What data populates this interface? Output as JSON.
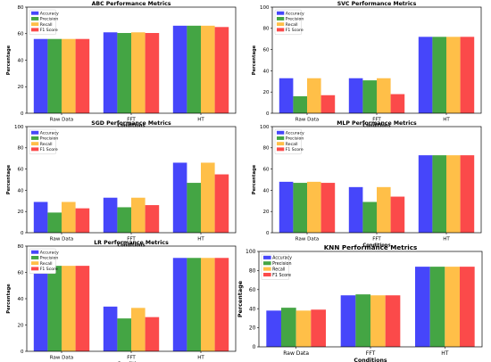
{
  "series_colors": [
    "#4646fa",
    "#44a544",
    "#ffbf48",
    "#fb4a4a"
  ],
  "chart_data": [
    {
      "type": "bar",
      "title": "ABC Performance Metrics",
      "xlabel": "Conditions",
      "ylabel": "Percentage",
      "categories": [
        "Raw Data",
        "FFT",
        "HT"
      ],
      "ylim": [
        0,
        80
      ],
      "yticks": [
        0,
        20,
        40,
        60,
        80
      ],
      "legend": "top-left",
      "grid": false,
      "series": [
        {
          "name": "Accuracy",
          "values": [
            56,
            61,
            66
          ]
        },
        {
          "name": "Precision",
          "values": [
            56,
            60.5,
            66
          ]
        },
        {
          "name": "Recall",
          "values": [
            56,
            61,
            66
          ]
        },
        {
          "name": "F1 Score",
          "values": [
            56,
            60.5,
            65
          ]
        }
      ]
    },
    {
      "type": "bar",
      "title": "SVC Performance Metrics",
      "xlabel": "Conditions",
      "ylabel": "Percentage",
      "categories": [
        "Raw Data",
        "FFT",
        "HT"
      ],
      "ylim": [
        0,
        100
      ],
      "yticks": [
        0,
        20,
        40,
        60,
        80,
        100
      ],
      "legend": "top-left",
      "grid": false,
      "series": [
        {
          "name": "Accuracy",
          "values": [
            33,
            33,
            72
          ]
        },
        {
          "name": "Precision",
          "values": [
            16,
            31,
            72
          ]
        },
        {
          "name": "Recall",
          "values": [
            33,
            33,
            72
          ]
        },
        {
          "name": "F1 Score",
          "values": [
            17,
            18,
            72
          ]
        }
      ]
    },
    {
      "type": "bar",
      "title": "SGD Performance Metrics",
      "xlabel": "Conditions",
      "ylabel": "Percentage",
      "categories": [
        "Raw Data",
        "FFT",
        "HT"
      ],
      "ylim": [
        0,
        100
      ],
      "yticks": [
        0,
        20,
        40,
        60,
        80,
        100
      ],
      "legend": "top-left",
      "grid": false,
      "series": [
        {
          "name": "Accuracy",
          "values": [
            29,
            33,
            66
          ]
        },
        {
          "name": "Precision",
          "values": [
            19,
            24,
            47
          ]
        },
        {
          "name": "Recall",
          "values": [
            29,
            33,
            66
          ]
        },
        {
          "name": "F1 Score",
          "values": [
            23,
            26,
            55
          ]
        }
      ]
    },
    {
      "type": "bar",
      "title": "MLP Performance Metrics",
      "xlabel": "Conditions",
      "ylabel": "Percentage",
      "categories": [
        "Raw Data",
        "FFT",
        "HT"
      ],
      "ylim": [
        0,
        100
      ],
      "yticks": [
        0,
        20,
        40,
        60,
        80,
        100
      ],
      "legend": "top-left",
      "grid": false,
      "series": [
        {
          "name": "Accuracy",
          "values": [
            48,
            43,
            73
          ]
        },
        {
          "name": "Precision",
          "values": [
            47,
            29,
            73
          ]
        },
        {
          "name": "Recall",
          "values": [
            48,
            43,
            73
          ]
        },
        {
          "name": "F1 Score",
          "values": [
            47,
            34,
            73
          ]
        }
      ]
    },
    {
      "type": "bar",
      "title": "LR Performance Metrics",
      "xlabel": "Conditions",
      "ylabel": "Percentage",
      "categories": [
        "Raw Data",
        "FFT",
        "HT"
      ],
      "ylim": [
        0,
        80
      ],
      "yticks": [
        0,
        20,
        40,
        60,
        80
      ],
      "legend": "top-left",
      "grid": false,
      "series": [
        {
          "name": "Accuracy",
          "values": [
            65,
            34,
            71
          ]
        },
        {
          "name": "Precision",
          "values": [
            65,
            25,
            71
          ]
        },
        {
          "name": "Recall",
          "values": [
            65,
            33,
            71
          ]
        },
        {
          "name": "F1 Score",
          "values": [
            65,
            26,
            71
          ]
        }
      ]
    },
    {
      "type": "bar",
      "title": "KNN Performance Metrics",
      "xlabel": "Conditions",
      "ylabel": "Percentage",
      "categories": [
        "Raw Data",
        "FFT",
        "HT"
      ],
      "ylim": [
        0,
        100
      ],
      "yticks": [
        0,
        20,
        40,
        60,
        80,
        100
      ],
      "legend": "top-left",
      "grid": false,
      "series": [
        {
          "name": "Accuracy",
          "values": [
            38,
            54,
            84
          ]
        },
        {
          "name": "Precision",
          "values": [
            41,
            55,
            84
          ]
        },
        {
          "name": "Recall",
          "values": [
            38,
            54,
            84
          ]
        },
        {
          "name": "F1 Score",
          "values": [
            39,
            54,
            84
          ]
        }
      ]
    }
  ]
}
